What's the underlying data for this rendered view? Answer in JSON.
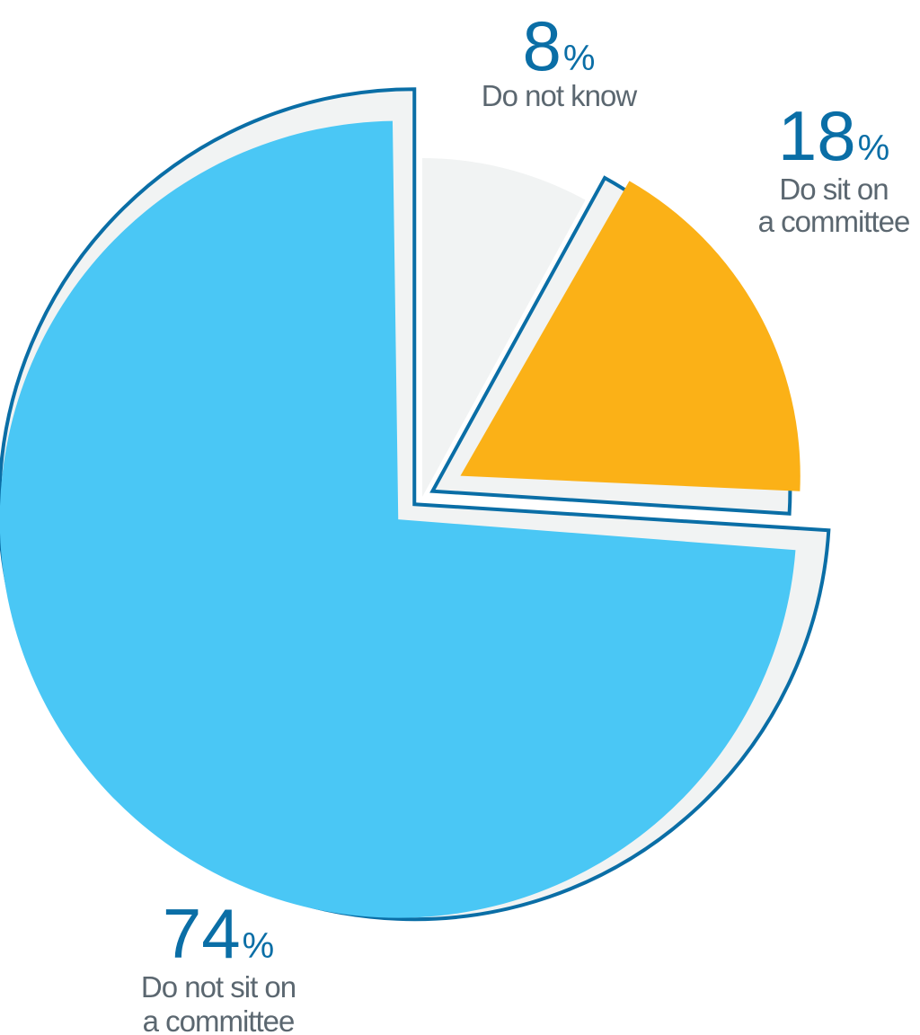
{
  "chart_data": {
    "type": "pie",
    "slices": [
      {
        "label_lines": [
          "Do not know"
        ],
        "value": 8,
        "percent_label": "8",
        "color": "#f1f3f3"
      },
      {
        "label_lines": [
          "Do sit on",
          "a committee"
        ],
        "value": 18,
        "percent_label": "18",
        "color": "#fbb117"
      },
      {
        "label_lines": [
          "Do not sit on",
          "a committee"
        ],
        "value": 74,
        "percent_label": "74",
        "color": "#4ac7f5"
      }
    ],
    "percent_sign": "%"
  },
  "colors": {
    "outline": "#0a6ea6",
    "ring": "#f1f3f3",
    "percent_text": "#0a6ea6",
    "label_text": "#5b6770"
  }
}
